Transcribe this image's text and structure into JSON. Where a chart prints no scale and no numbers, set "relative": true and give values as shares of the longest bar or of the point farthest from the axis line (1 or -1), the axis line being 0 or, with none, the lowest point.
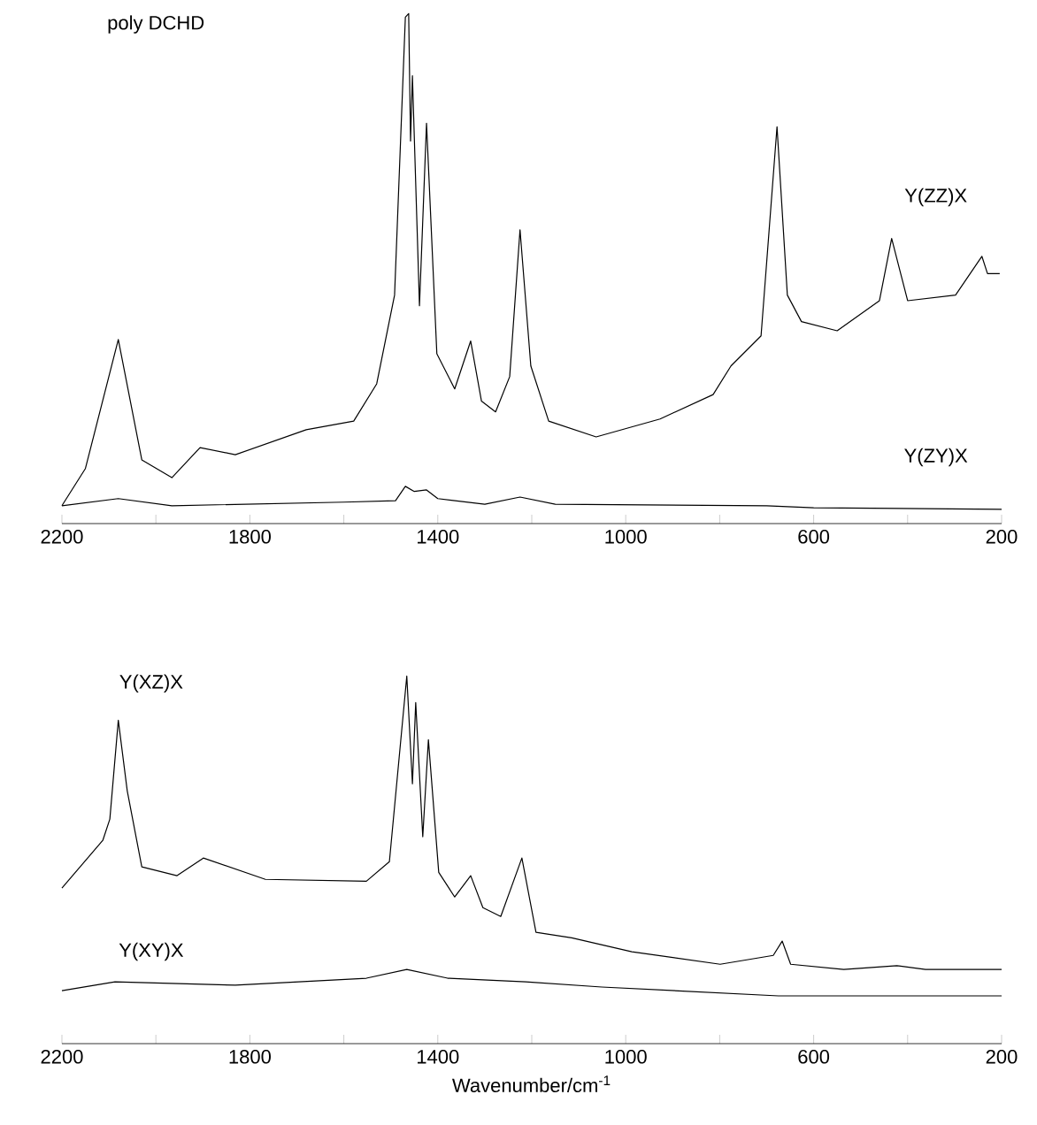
{
  "chart_data": [
    {
      "type": "line",
      "title": "poly DCHD",
      "relative": true,
      "xlim": [
        2200,
        200
      ],
      "xticks": [
        2200,
        {
          "value": 2000,
          "label": null
        },
        1800,
        {
          "value": 1600,
          "label": null
        },
        1400,
        {
          "value": 1200,
          "label": null
        },
        1000,
        {
          "value": 800,
          "label": null
        },
        600,
        {
          "value": 400,
          "label": null
        },
        200
      ],
      "marker": "none",
      "line_style": "solid",
      "series": [
        {
          "name": "Y(ZZ)X",
          "color": "#000000",
          "x": [
            2200,
            2150,
            2080,
            2030,
            1966,
            1906,
            1831,
            1680,
            1579,
            1530,
            1492,
            1469,
            1462,
            1458,
            1454,
            1439,
            1424,
            1402,
            1364,
            1330,
            1307,
            1277,
            1247,
            1225,
            1202,
            1164,
            1063,
            927,
            814,
            776,
            712,
            678,
            656,
            626,
            550,
            460,
            434,
            400,
            298,
            242,
            230,
            204
          ],
          "values": [
            0.035,
            0.108,
            0.361,
            0.125,
            0.09,
            0.149,
            0.135,
            0.184,
            0.201,
            0.274,
            0.448,
            0.993,
            1.0,
            0.75,
            0.878,
            0.427,
            0.785,
            0.333,
            0.264,
            0.358,
            0.24,
            0.219,
            0.288,
            0.576,
            0.309,
            0.201,
            0.17,
            0.205,
            0.253,
            0.309,
            0.368,
            0.778,
            0.448,
            0.396,
            0.378,
            0.437,
            0.559,
            0.437,
            0.448,
            0.524,
            0.49,
            0.49
          ]
        },
        {
          "name": "Y(ZY)X",
          "color": "#000000",
          "x": [
            2200,
            2080,
            1966,
            1600,
            1490,
            1469,
            1450,
            1424,
            1400,
            1300,
            1225,
            1150,
            700,
            600,
            200
          ],
          "values": [
            0.035,
            0.049,
            0.035,
            0.042,
            0.045,
            0.073,
            0.063,
            0.066,
            0.049,
            0.038,
            0.052,
            0.038,
            0.035,
            0.031,
            0.028
          ]
        }
      ]
    },
    {
      "type": "line",
      "xlabel": "Wavenumber/cm$^{-1}$",
      "relative": true,
      "xlim": [
        2200,
        200
      ],
      "xticks": [
        2200,
        {
          "value": 2000,
          "label": null
        },
        1800,
        {
          "value": 1600,
          "label": null
        },
        1400,
        {
          "value": 1200,
          "label": null
        },
        1000,
        {
          "value": 800,
          "label": null
        },
        600,
        {
          "value": 400,
          "label": null
        },
        200
      ],
      "marker": "none",
      "line_style": "solid",
      "series": [
        {
          "name": "Y(XZ)X",
          "color": "#000000",
          "x": [
            2200,
            2113,
            2098,
            2080,
            2061,
            2030,
            1955,
            1899,
            1767,
            1552,
            1503,
            1466,
            1454,
            1447,
            1432,
            1420,
            1398,
            1364,
            1330,
            1304,
            1266,
            1221,
            1191,
            1115,
            987,
            799,
            686,
            667,
            649,
            536,
            423,
            362,
            200
          ],
          "values": [
            0.423,
            0.553,
            0.611,
            0.88,
            0.688,
            0.481,
            0.457,
            0.505,
            0.447,
            0.442,
            0.495,
            1.0,
            0.707,
            0.928,
            0.563,
            0.827,
            0.466,
            0.399,
            0.457,
            0.37,
            0.346,
            0.505,
            0.303,
            0.288,
            0.25,
            0.216,
            0.24,
            0.279,
            0.216,
            0.202,
            0.212,
            0.202,
            0.202
          ]
        },
        {
          "name": "Y(XY)X",
          "color": "#000000",
          "x": [
            2200,
            2087,
            1831,
            1552,
            1466,
            1379,
            1213,
            1051,
            675,
            200
          ],
          "values": [
            0.144,
            0.168,
            0.159,
            0.178,
            0.202,
            0.178,
            0.168,
            0.154,
            0.13,
            0.13
          ]
        }
      ]
    }
  ]
}
